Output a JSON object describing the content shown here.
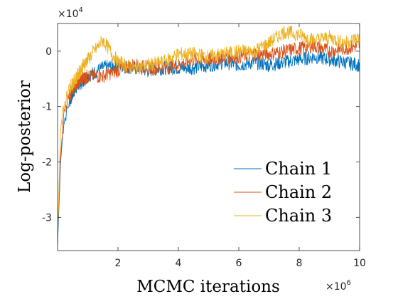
{
  "chart_data": {
    "type": "line",
    "xlabel": "MCMC iterations",
    "ylabel": "Log-posterior",
    "x_multiplier": {
      "base": "×10",
      "exp": "6"
    },
    "y_multiplier": {
      "base": "×10",
      "exp": "4"
    },
    "xlim": [
      0,
      10000000
    ],
    "ylim": [
      -36000,
      5000
    ],
    "x_ticks": [
      {
        "value": 2000000,
        "label": "2"
      },
      {
        "value": 4000000,
        "label": "4"
      },
      {
        "value": 6000000,
        "label": "6"
      },
      {
        "value": 8000000,
        "label": "8"
      },
      {
        "value": 10000000,
        "label": "10"
      }
    ],
    "y_ticks": [
      {
        "value": -30000,
        "label": "-3"
      },
      {
        "value": -20000,
        "label": "-2"
      },
      {
        "value": -10000,
        "label": "-1"
      },
      {
        "value": 0,
        "label": "0"
      }
    ],
    "legend_position": "bottom-right",
    "grid": false,
    "series": [
      {
        "name": "Chain 1",
        "color": "#0072BD",
        "x": [
          0,
          100000,
          200000,
          400000,
          600000,
          800000,
          1000000,
          1500000,
          2000000,
          2500000,
          3000000,
          3500000,
          4000000,
          4500000,
          5000000,
          5500000,
          6000000,
          6500000,
          7000000,
          7500000,
          8000000,
          8500000,
          9000000,
          9500000,
          10000000
        ],
        "values": [
          -35000,
          -20000,
          -13000,
          -9000,
          -6500,
          -5500,
          -4500,
          -3000,
          -2500,
          -3000,
          -3500,
          -3000,
          -3000,
          -3000,
          -2500,
          -2000,
          -2500,
          -2000,
          -2500,
          -2000,
          -1500,
          -1000,
          -1500,
          -2000,
          -2500
        ]
      },
      {
        "name": "Chain 2",
        "color": "#D95319",
        "x": [
          0,
          100000,
          200000,
          400000,
          600000,
          800000,
          1000000,
          1500000,
          2000000,
          2500000,
          3000000,
          3500000,
          4000000,
          4500000,
          5000000,
          5500000,
          6000000,
          6500000,
          7000000,
          7500000,
          8000000,
          8500000,
          9000000,
          9500000,
          10000000
        ],
        "values": [
          -33000,
          -19000,
          -12000,
          -8000,
          -6000,
          -5000,
          -4500,
          -4500,
          -3500,
          -2500,
          -3000,
          -3000,
          -2500,
          -1500,
          -1500,
          -1000,
          -1000,
          -500,
          -500,
          0,
          500,
          1000,
          0,
          500,
          1000
        ]
      },
      {
        "name": "Chain 3",
        "color": "#EDB120",
        "x": [
          0,
          100000,
          200000,
          400000,
          600000,
          800000,
          1000000,
          1500000,
          2000000,
          2500000,
          3000000,
          3500000,
          4000000,
          4500000,
          5000000,
          5500000,
          6000000,
          6500000,
          7000000,
          7500000,
          8000000,
          8500000,
          9000000,
          9500000,
          10000000
        ],
        "values": [
          -34000,
          -14000,
          -10000,
          -6500,
          -5000,
          -3000,
          -1500,
          2000,
          -2000,
          -3000,
          -2500,
          -2000,
          -500,
          -500,
          -1000,
          -500,
          0,
          0,
          1500,
          3500,
          3000,
          2000,
          2500,
          1500,
          2500
        ]
      }
    ]
  }
}
